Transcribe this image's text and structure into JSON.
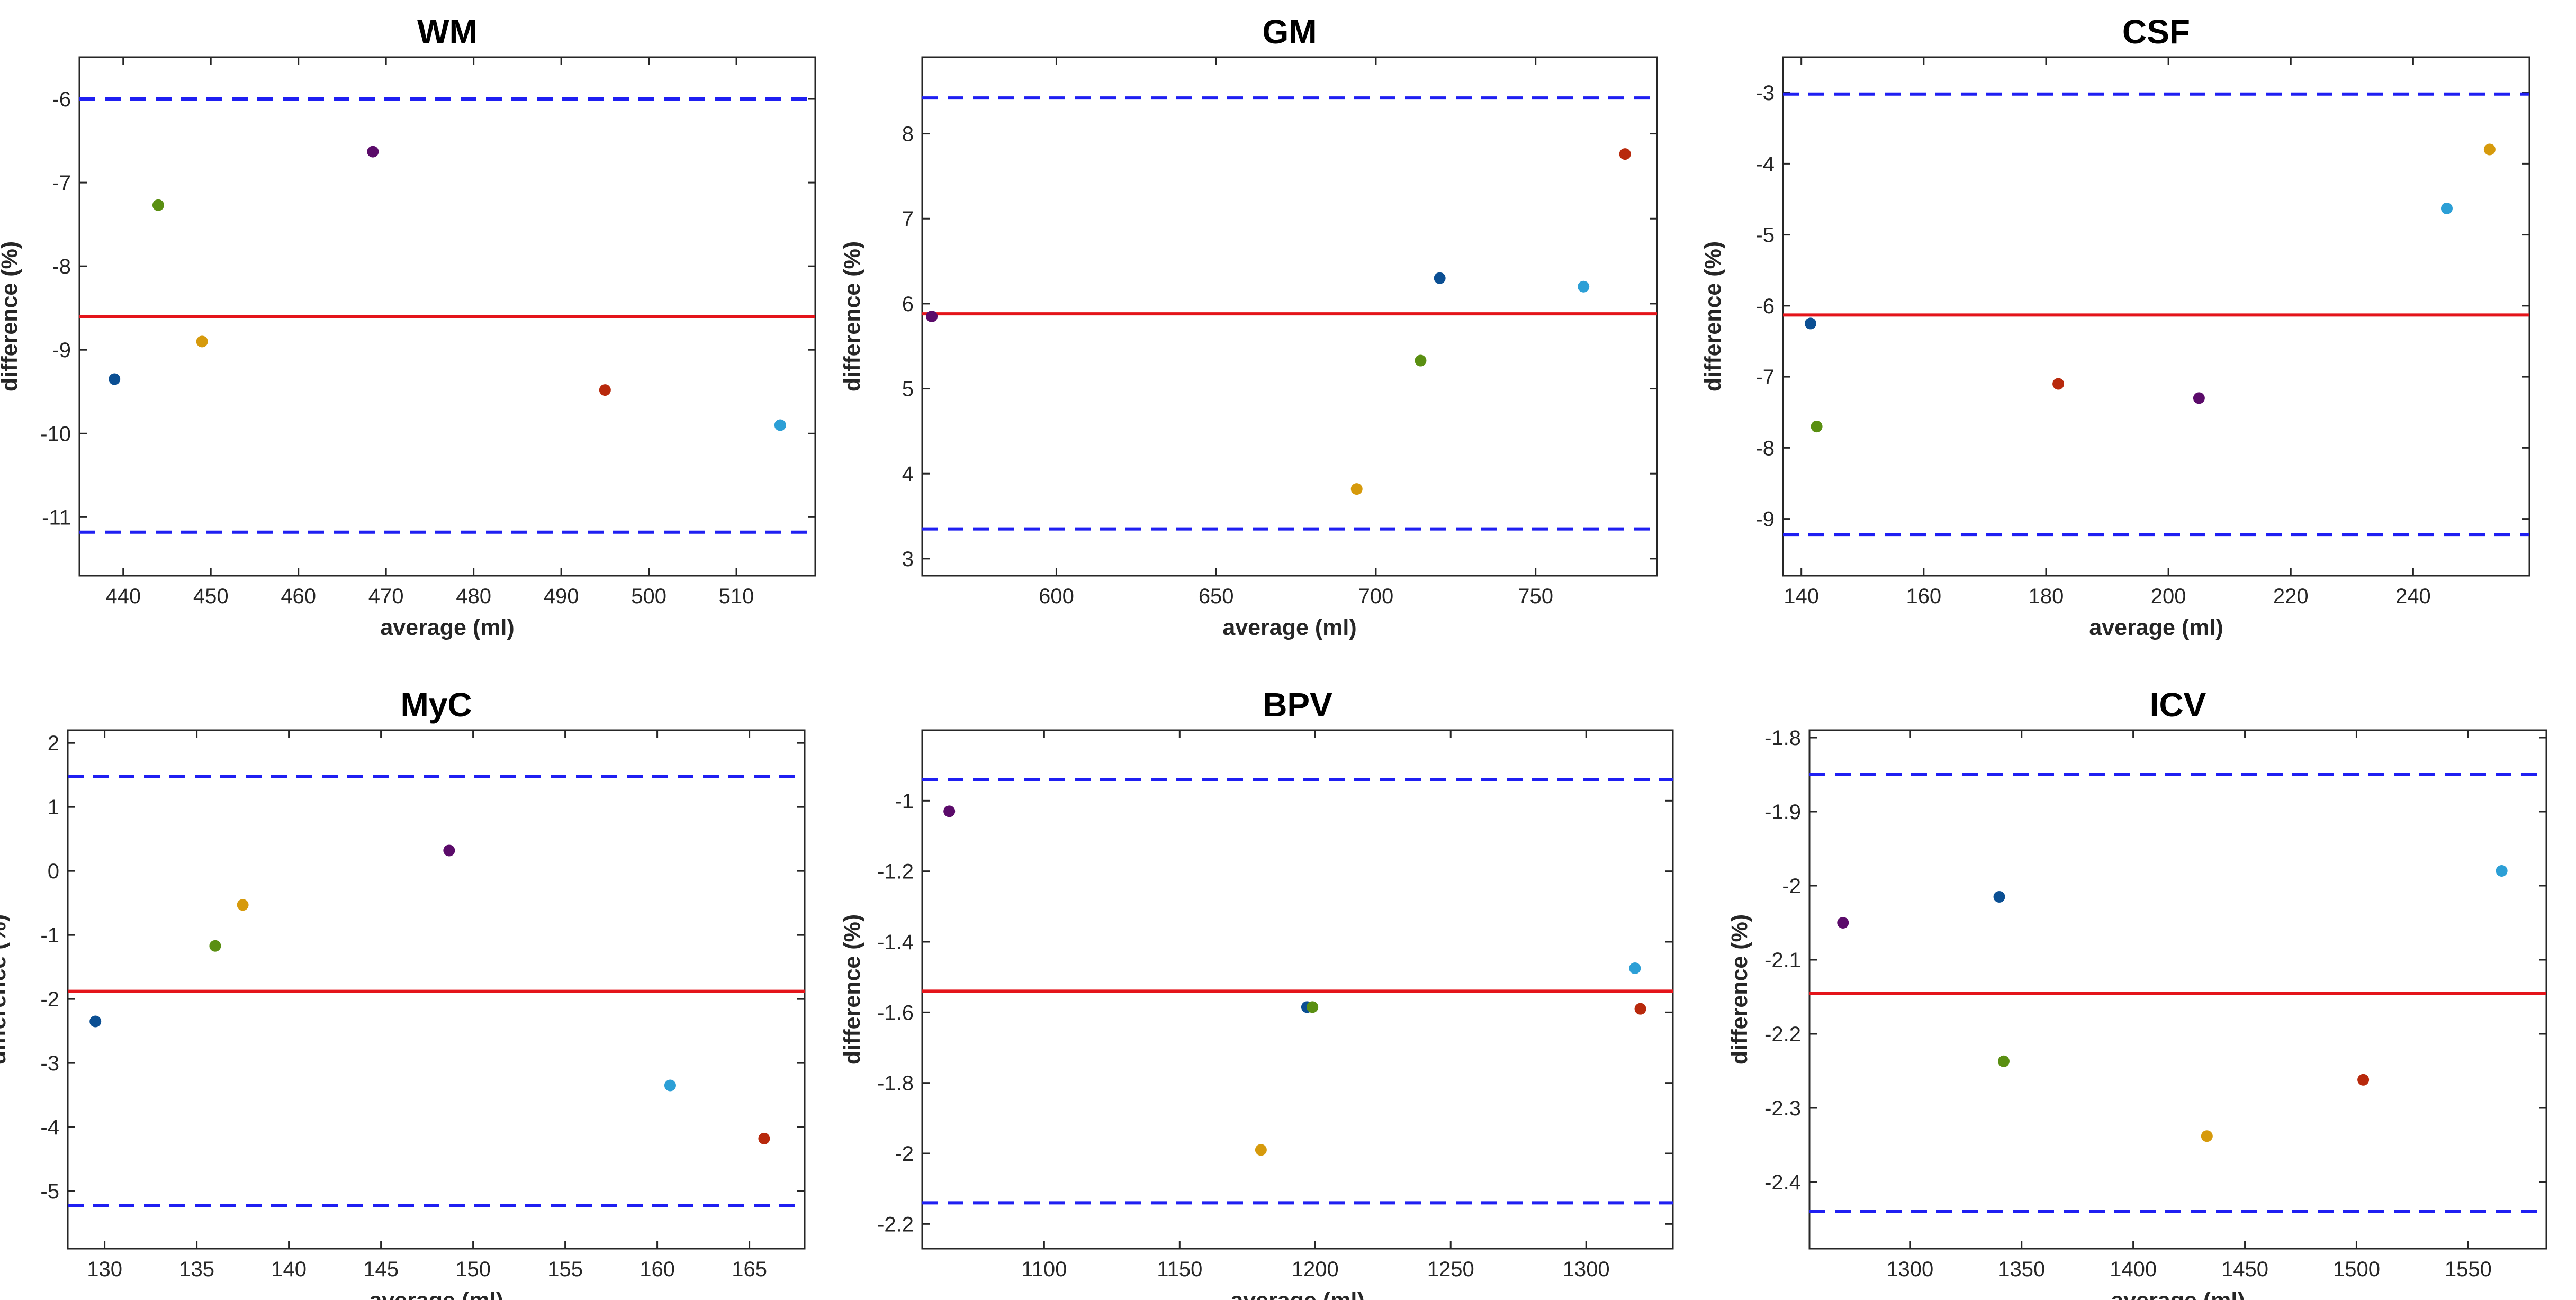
{
  "figure": {
    "colors": {
      "mean_line": "#e4141a",
      "loa_line": "#1f1ff2",
      "axis": "#262626",
      "subjects": [
        "#0b4f93",
        "#5a8f12",
        "#d69a0c",
        "#5b0b6a",
        "#b8290c",
        "#2c9fd6"
      ]
    }
  },
  "chart_data": [
    {
      "type": "scatter",
      "title": "WM",
      "xlabel": "average (ml)",
      "ylabel": "difference (%)",
      "xlim": [
        435,
        519
      ],
      "ylim": [
        -11.7,
        -5.5
      ],
      "xticks": [
        440,
        450,
        460,
        470,
        480,
        490,
        500,
        510
      ],
      "yticks": [
        -11,
        -10,
        -9,
        -8,
        -7,
        -6
      ],
      "mean": -8.6,
      "upper_loa": -6.0,
      "lower_loa": -11.18,
      "points": [
        {
          "x": 439,
          "y": -9.35,
          "color": "#0b4f93"
        },
        {
          "x": 444,
          "y": -7.27,
          "color": "#5a8f12"
        },
        {
          "x": 449,
          "y": -8.9,
          "color": "#d69a0c"
        },
        {
          "x": 468.5,
          "y": -6.63,
          "color": "#5b0b6a"
        },
        {
          "x": 495,
          "y": -9.48,
          "color": "#b8290c"
        },
        {
          "x": 515,
          "y": -9.9,
          "color": "#2c9fd6"
        }
      ]
    },
    {
      "type": "scatter",
      "title": "GM",
      "xlabel": "average (ml)",
      "ylabel": "difference (%)",
      "xlim": [
        558,
        788
      ],
      "ylim": [
        2.8,
        8.9
      ],
      "xticks": [
        600,
        650,
        700,
        750
      ],
      "yticks": [
        3,
        4,
        5,
        6,
        7,
        8
      ],
      "mean": 5.88,
      "upper_loa": 8.42,
      "lower_loa": 3.35,
      "points": [
        {
          "x": 561,
          "y": 5.85,
          "color": "#5b0b6a"
        },
        {
          "x": 694,
          "y": 3.82,
          "color": "#d69a0c"
        },
        {
          "x": 714,
          "y": 5.33,
          "color": "#5a8f12"
        },
        {
          "x": 720,
          "y": 6.3,
          "color": "#0b4f93"
        },
        {
          "x": 765,
          "y": 6.2,
          "color": "#2c9fd6"
        },
        {
          "x": 778,
          "y": 7.76,
          "color": "#b8290c"
        }
      ]
    },
    {
      "type": "scatter",
      "title": "CSF",
      "xlabel": "average (ml)",
      "ylabel": "difference (%)",
      "xlim": [
        137,
        259
      ],
      "ylim": [
        -9.8,
        -2.5
      ],
      "xticks": [
        140,
        160,
        180,
        200,
        220,
        240
      ],
      "yticks": [
        -9,
        -8,
        -7,
        -6,
        -5,
        -4,
        -3
      ],
      "mean": -6.13,
      "upper_loa": -3.02,
      "lower_loa": -9.22,
      "points": [
        {
          "x": 141.5,
          "y": -6.25,
          "color": "#0b4f93"
        },
        {
          "x": 142.5,
          "y": -7.7,
          "color": "#5a8f12"
        },
        {
          "x": 182,
          "y": -7.1,
          "color": "#b8290c"
        },
        {
          "x": 205,
          "y": -7.3,
          "color": "#5b0b6a"
        },
        {
          "x": 245.5,
          "y": -4.63,
          "color": "#2c9fd6"
        },
        {
          "x": 252.5,
          "y": -3.8,
          "color": "#d69a0c"
        }
      ]
    },
    {
      "type": "scatter",
      "title": "MyC",
      "xlabel": "average (ml)",
      "ylabel": "difference (%)",
      "xlim": [
        128,
        168
      ],
      "ylim": [
        -5.9,
        2.2
      ],
      "xticks": [
        130,
        135,
        140,
        145,
        150,
        155,
        160,
        165
      ],
      "yticks": [
        -5,
        -4,
        -3,
        -2,
        -1,
        0,
        1,
        2
      ],
      "mean": -1.88,
      "upper_loa": 1.48,
      "lower_loa": -5.23,
      "points": [
        {
          "x": 129.5,
          "y": -2.35,
          "color": "#0b4f93"
        },
        {
          "x": 136,
          "y": -1.17,
          "color": "#5a8f12"
        },
        {
          "x": 137.5,
          "y": -0.53,
          "color": "#d69a0c"
        },
        {
          "x": 148.7,
          "y": 0.32,
          "color": "#5b0b6a"
        },
        {
          "x": 160.7,
          "y": -3.35,
          "color": "#2c9fd6"
        },
        {
          "x": 165.8,
          "y": -4.18,
          "color": "#b8290c"
        }
      ]
    },
    {
      "type": "scatter",
      "title": "BPV",
      "xlabel": "average (ml)",
      "ylabel": "difference (%)",
      "xlim": [
        1055,
        1332
      ],
      "ylim": [
        -2.27,
        -0.8
      ],
      "xticks": [
        1100,
        1150,
        1200,
        1250,
        1300
      ],
      "yticks": [
        -2.2,
        -2,
        -1.8,
        -1.6,
        -1.4,
        -1.2,
        -1
      ],
      "mean": -1.54,
      "upper_loa": -0.94,
      "lower_loa": -2.14,
      "points": [
        {
          "x": 1065,
          "y": -1.03,
          "color": "#5b0b6a"
        },
        {
          "x": 1180,
          "y": -1.99,
          "color": "#d69a0c"
        },
        {
          "x": 1197,
          "y": -1.585,
          "color": "#0b4f93"
        },
        {
          "x": 1199,
          "y": -1.585,
          "color": "#5a8f12"
        },
        {
          "x": 1318,
          "y": -1.475,
          "color": "#2c9fd6"
        },
        {
          "x": 1320,
          "y": -1.59,
          "color": "#b8290c"
        }
      ]
    },
    {
      "type": "scatter",
      "title": "ICV",
      "xlabel": "average (ml)",
      "ylabel": "difference (%)",
      "xlim": [
        1255,
        1585
      ],
      "ylim": [
        -2.49,
        -1.79
      ],
      "xticks": [
        1300,
        1350,
        1400,
        1450,
        1500,
        1550
      ],
      "yticks": [
        -2.4,
        -2.3,
        -2.2,
        -2.1,
        -2,
        -1.9,
        -1.8
      ],
      "mean": -2.145,
      "upper_loa": -1.85,
      "lower_loa": -2.44,
      "points": [
        {
          "x": 1270,
          "y": -2.05,
          "color": "#5b0b6a"
        },
        {
          "x": 1340,
          "y": -2.015,
          "color": "#0b4f93"
        },
        {
          "x": 1342,
          "y": -2.237,
          "color": "#5a8f12"
        },
        {
          "x": 1433,
          "y": -2.338,
          "color": "#d69a0c"
        },
        {
          "x": 1503,
          "y": -2.262,
          "color": "#b8290c"
        },
        {
          "x": 1565,
          "y": -1.98,
          "color": "#2c9fd6"
        }
      ]
    }
  ]
}
